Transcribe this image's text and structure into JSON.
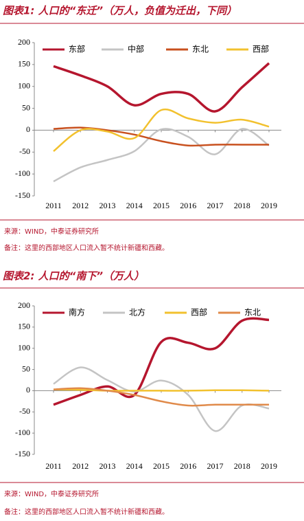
{
  "chart_data": [
    {
      "type": "line",
      "title": "图表1: 人口的“东迁”（万人，负值为迁出，下同）",
      "categories": [
        "2011",
        "2012",
        "2013",
        "2014",
        "2015",
        "2016",
        "2017",
        "2018",
        "2019"
      ],
      "series": [
        {
          "name": "东部",
          "color": "#b5162e",
          "values": [
            146,
            125,
            100,
            57,
            83,
            83,
            43,
            98,
            153
          ]
        },
        {
          "name": "中部",
          "color": "#c4c4c4",
          "values": [
            -117,
            -85,
            -68,
            -48,
            2,
            -15,
            -55,
            3,
            -35
          ]
        },
        {
          "name": "东北",
          "color": "#c8501e",
          "values": [
            3,
            6,
            0,
            -10,
            -25,
            -35,
            -33,
            -33,
            -33
          ]
        },
        {
          "name": "西部",
          "color": "#f2c12e",
          "values": [
            -48,
            0,
            -3,
            -18,
            46,
            27,
            17,
            24,
            8
          ]
        }
      ],
      "ylim": [
        -150,
        200
      ],
      "yticks": [
        -150,
        -100,
        -50,
        0,
        50,
        100,
        150,
        200
      ],
      "source": "来源：WIND，中泰证券研究所",
      "note": "备注：这里的西部地区人口流入暂不统计新疆和西藏。"
    },
    {
      "type": "line",
      "title": "图表2: 人口的“南下”（万人）",
      "categories": [
        "2011",
        "2012",
        "2013",
        "2014",
        "2015",
        "2016",
        "2017",
        "2018",
        "2019"
      ],
      "series": [
        {
          "name": "南方",
          "color": "#b5162e",
          "values": [
            -33,
            -10,
            10,
            -10,
            115,
            113,
            100,
            165,
            167
          ]
        },
        {
          "name": "北方",
          "color": "#c4c4c4",
          "values": [
            16,
            55,
            25,
            -2,
            24,
            -10,
            -95,
            -35,
            -42
          ]
        },
        {
          "name": "西部",
          "color": "#f2c12e",
          "values": [
            3,
            2,
            0,
            0,
            0,
            0,
            1,
            1,
            0
          ]
        },
        {
          "name": "东北",
          "color": "#e08a4a",
          "values": [
            3,
            6,
            0,
            -10,
            -25,
            -35,
            -33,
            -33,
            -33
          ]
        }
      ],
      "ylim": [
        -150,
        200
      ],
      "yticks": [
        -150,
        -100,
        -50,
        0,
        50,
        100,
        150,
        200
      ],
      "source": "来源：WIND，中泰证券研究所",
      "note": "备注：这里的西部地区人口流入暂不统计新疆和西藏。"
    }
  ]
}
